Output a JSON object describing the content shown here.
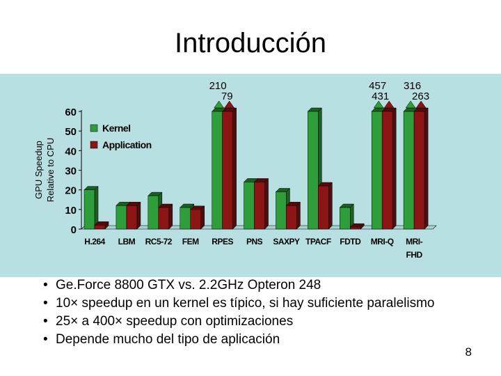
{
  "slide": {
    "title": "Introducción",
    "page_number": "8",
    "bullets": [
      "Ge.Force 8800 GTX vs. 2.2GHz Opteron 248",
      "10× speedup en un kernel es típico, si hay suficiente paralelismo",
      "25× a 400× speedup con optimizaciones",
      "Depende mucho del tipo de aplicación"
    ]
  },
  "colors": {
    "panel_background": "#b8dfe2",
    "kernel": "#2e9e3a",
    "application": "#8b1414"
  },
  "chart_data": {
    "type": "bar",
    "ylabel_lines": [
      "GPU Speedup",
      "Relative to CPU"
    ],
    "xlabel": "",
    "ylim": [
      0,
      60
    ],
    "yticks": [
      0,
      10,
      20,
      30,
      40,
      50,
      60
    ],
    "grid": false,
    "legend_position": "top-left",
    "categories": [
      [
        "H.264"
      ],
      [
        "LBM"
      ],
      [
        "RC5-72"
      ],
      [
        "FEM"
      ],
      [
        "RPES"
      ],
      [
        "PNS"
      ],
      [
        "SAXPY"
      ],
      [
        "TPACF"
      ],
      [
        "FDTD"
      ],
      [
        "MRI-Q"
      ],
      [
        "MRI-",
        "FHD"
      ]
    ],
    "series": [
      {
        "name": "Kernel",
        "color": "#2e9e3a",
        "values": [
          20,
          12,
          17,
          11,
          60,
          24,
          19,
          60,
          11,
          60,
          60
        ]
      },
      {
        "name": "Application",
        "color": "#8b1414",
        "values": [
          2,
          12,
          11,
          10,
          60,
          24,
          12,
          22,
          1,
          60,
          60
        ]
      }
    ],
    "overflow_labels": [
      {
        "category": 4,
        "kernel": "210",
        "application": "79"
      },
      {
        "category": 9,
        "kernel": "457",
        "application": "431"
      },
      {
        "category": 10,
        "kernel": "316",
        "application": "263"
      }
    ]
  }
}
